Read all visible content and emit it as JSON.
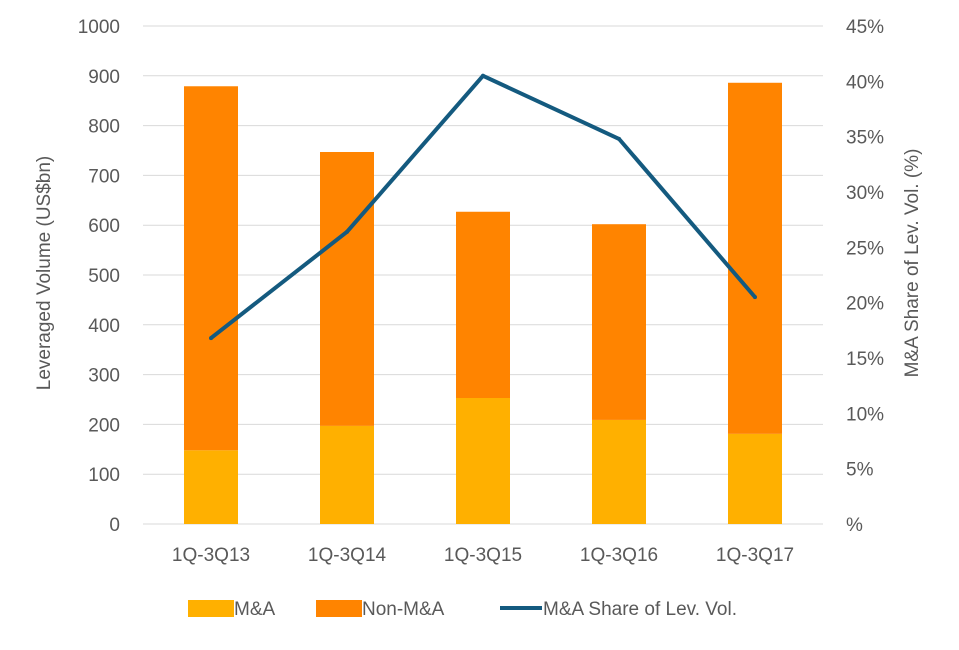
{
  "chart_data": {
    "type": "bar",
    "stacked": true,
    "categories": [
      "1Q-3Q13",
      "1Q-3Q14",
      "1Q-3Q15",
      "1Q-3Q16",
      "1Q-3Q17"
    ],
    "series": [
      {
        "name": "M&A",
        "type": "bar",
        "axis": "left",
        "color": "#FFB000",
        "values": [
          148,
          197,
          253,
          209,
          181
        ]
      },
      {
        "name": "Non-M&A",
        "type": "bar",
        "axis": "left",
        "color": "#FF8400",
        "values": [
          731,
          550,
          374,
          393,
          705
        ]
      },
      {
        "name": "M&A Share of Lev. Vol.",
        "type": "line",
        "axis": "right",
        "color": "#145A7F",
        "values": [
          16.8,
          26.4,
          40.5,
          34.8,
          20.5
        ]
      }
    ],
    "ylabel": "Leveraged Volume (US$bn)",
    "ylabel_right": "M&A Share of Lev. Vol. (%)",
    "ylim": [
      0,
      1000
    ],
    "ylim_right": [
      0,
      45
    ],
    "yticks": [
      "0",
      "100",
      "200",
      "300",
      "400",
      "500",
      "600",
      "700",
      "800",
      "900",
      "1000"
    ],
    "yticks_right": [
      "%",
      "5%",
      "10%",
      "15%",
      "20%",
      "25%",
      "30%",
      "35%",
      "40%",
      "45%"
    ],
    "grid": true,
    "legend_position": "bottom"
  }
}
